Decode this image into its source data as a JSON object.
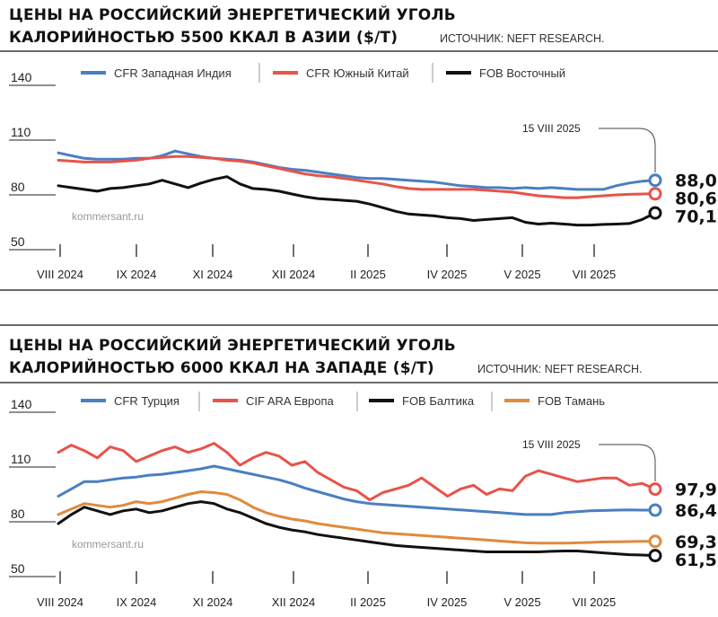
{
  "chart_data": [
    {
      "type": "line",
      "title": "ЦЕНЫ НА РОССИЙСКИЙ ЭНЕРГЕТИЧЕСКИЙ УГОЛЬ",
      "subtitle": "КАЛОРИЙНОСТЬЮ 5500 ККАЛ В АЗИИ ($/Т)",
      "source": "ИСТОЧНИК: NEFT RESEARCH.",
      "watermark": "kommersant.ru",
      "annotation": "15 VIII 2025",
      "grid": false,
      "legend_position": "top",
      "ylim": [
        50,
        140
      ],
      "y_ticks": [
        "140",
        "110",
        "80",
        "50"
      ],
      "x_tick_labels": [
        "VIII 2024",
        "IX 2024",
        "XI 2024",
        "XII 2024",
        "II 2025",
        "IV 2025",
        "V 2025",
        "VII 2025"
      ],
      "series": [
        {
          "name": "CFR Западная Индия",
          "color": "#4a7fc1",
          "end_label": "88,0",
          "values": [
            103,
            101.5,
            100,
            99.5,
            99.5,
            99.5,
            100,
            100,
            101.5,
            104,
            102.5,
            101,
            100,
            99.5,
            99,
            98,
            96.5,
            95,
            94,
            93.5,
            92.5,
            91.5,
            90.5,
            89.5,
            89,
            89,
            88.5,
            88,
            87.5,
            87,
            86,
            85,
            84.5,
            84,
            84,
            83.5,
            84,
            83.5,
            84,
            83.5,
            83,
            83,
            83,
            85,
            86.5,
            87.5,
            88
          ]
        },
        {
          "name": "CFR Южный Китай",
          "color": "#e8534a",
          "end_label": "80,6",
          "values": [
            99,
            98.5,
            98,
            98,
            98,
            98.5,
            99,
            100,
            100.5,
            101,
            101,
            100.5,
            100,
            99,
            98.5,
            97.5,
            96,
            94.5,
            93,
            91.5,
            90.5,
            90,
            89,
            88,
            87,
            86,
            84.5,
            83.5,
            83,
            83,
            83,
            83,
            83,
            82.5,
            82,
            81.5,
            80.5,
            79.5,
            79,
            78.5,
            78.5,
            79,
            79.5,
            80,
            80.3,
            80.5,
            80.6
          ]
        },
        {
          "name": "FOB Восточный",
          "color": "#111111",
          "end_label": "70,1",
          "values": [
            85,
            84,
            83,
            82,
            83.5,
            84,
            85,
            86,
            88,
            86,
            84,
            86.5,
            88.5,
            90,
            86,
            83.5,
            83,
            82,
            80.5,
            79,
            78,
            77.5,
            77,
            76.5,
            75,
            73,
            71,
            69.5,
            69,
            68.5,
            67.5,
            67,
            66,
            66.5,
            67,
            67.5,
            65,
            64,
            64.5,
            64,
            63.5,
            63.5,
            63.8,
            64,
            64.3,
            66.5,
            70.1
          ]
        }
      ]
    },
    {
      "type": "line",
      "title": "ЦЕНЫ НА РОССИЙСКИЙ ЭНЕРГЕТИЧЕСКИЙ УГОЛЬ",
      "subtitle": "КАЛОРИЙНОСТЬЮ 6000 ККАЛ НА ЗАПАДЕ ($/Т)",
      "source": "ИСТОЧНИК: NEFT RESEARCH.",
      "watermark": "kommersant.ru",
      "annotation": "15 VIII 2025",
      "grid": false,
      "legend_position": "top",
      "ylim": [
        50,
        140
      ],
      "y_ticks": [
        "140",
        "110",
        "80",
        "50"
      ],
      "x_tick_labels": [
        "VIII 2024",
        "IX 2024",
        "XI 2024",
        "XII 2024",
        "II 2025",
        "IV 2025",
        "V 2025",
        "VII 2025"
      ],
      "series": [
        {
          "name": "CFR Турция",
          "color": "#4a7fc1",
          "end_label": "86,4",
          "values": [
            94,
            98,
            102,
            102,
            103,
            104,
            104.5,
            105.5,
            106,
            107,
            108,
            109,
            110.5,
            109,
            107.5,
            106,
            104.5,
            103,
            101,
            98.5,
            96.5,
            94.5,
            92.5,
            91,
            90,
            89.5,
            89,
            88.5,
            88,
            87.5,
            87,
            86.5,
            86,
            85.5,
            85,
            84.5,
            84,
            84,
            84,
            85,
            85.5,
            86,
            86.2,
            86.4,
            86.5,
            86.4,
            86.4
          ]
        },
        {
          "name": "CIF ARA Европа",
          "color": "#e8534a",
          "end_label": "97,9",
          "values": [
            118,
            122,
            119,
            115,
            121,
            119,
            113,
            116,
            119,
            121,
            118,
            120,
            123,
            118,
            111,
            115,
            118,
            116,
            111,
            113,
            107,
            103,
            99,
            97,
            92,
            96,
            98,
            100,
            104,
            99,
            94,
            98,
            100,
            95,
            98,
            97,
            105,
            108,
            106,
            104,
            102,
            103,
            104,
            104,
            100,
            101,
            97.9
          ]
        },
        {
          "name": "FOB Балтика",
          "color": "#111111",
          "end_label": "61,5",
          "values": [
            79,
            84,
            88,
            86,
            84,
            86,
            87,
            85,
            86,
            88,
            90,
            91,
            90,
            87,
            85,
            82,
            79,
            77,
            75.5,
            74.5,
            73,
            72,
            71,
            70,
            69,
            68,
            67,
            66.5,
            66,
            65.5,
            65,
            64.5,
            64,
            63.5,
            63.5,
            63.5,
            63.5,
            63.5,
            63.8,
            64,
            64,
            63.5,
            63,
            62.5,
            62,
            61.8,
            61.5
          ]
        },
        {
          "name": "FOB Тамань",
          "color": "#e08a3c",
          "end_label": "69,3",
          "values": [
            84,
            87,
            90,
            89,
            88,
            89,
            91,
            90,
            91,
            93,
            95,
            96.5,
            96,
            95,
            92,
            88,
            85,
            83,
            81.5,
            80.5,
            79,
            78,
            77,
            76,
            75,
            74,
            73.5,
            73,
            72.5,
            72,
            71.5,
            71,
            70.5,
            70,
            69.5,
            69,
            68.5,
            68.3,
            68.3,
            68.3,
            68.5,
            68.7,
            69,
            69.1,
            69.2,
            69.3,
            69.3
          ]
        }
      ]
    }
  ]
}
